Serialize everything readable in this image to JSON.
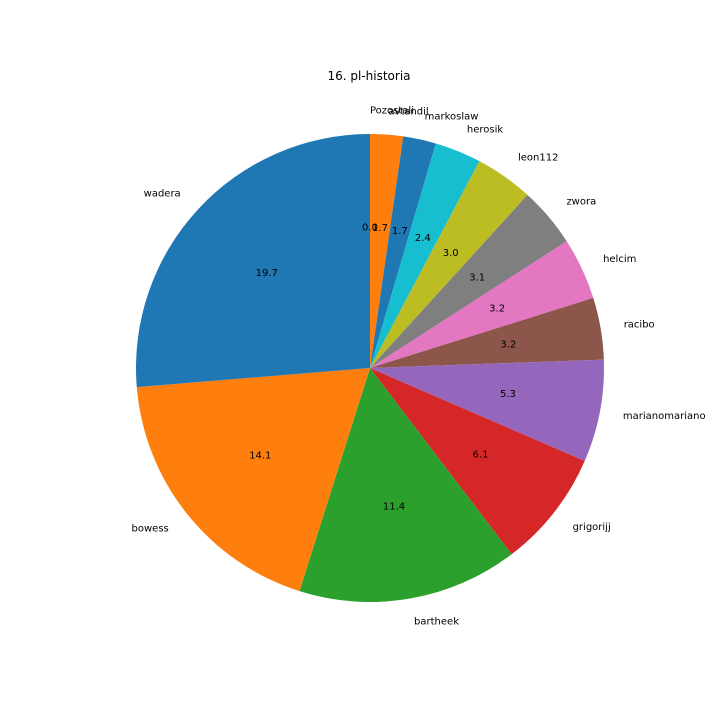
{
  "chart_data": {
    "type": "pie",
    "title": "16. pl-historia",
    "start_angle_deg": 90,
    "direction": "clockwise",
    "value_format": "percent, 1 decimal",
    "labels": [
      "Pozostali",
      "avtandil",
      "markoslaw",
      "herosik",
      "leon112",
      "zwora",
      "helcim",
      "racibo",
      "marianomariano",
      "grigorijj",
      "bartheek",
      "bowess",
      "wadera"
    ],
    "pct_labels": [
      "0.0",
      "1.7",
      "1.7",
      "2.4",
      "3.0",
      "3.1",
      "3.2",
      "3.2",
      "5.3",
      "6.1",
      "11.4",
      "14.1",
      "19.7"
    ],
    "values": [
      0.0,
      1.7,
      1.7,
      2.4,
      3.0,
      3.1,
      3.2,
      3.2,
      5.3,
      6.1,
      11.4,
      14.1,
      19.7
    ],
    "colors": [
      "#ff7f0e",
      "#ff7f0e",
      "#1f77b4",
      "#17becf",
      "#bcbd22",
      "#7f7f7f",
      "#e377c2",
      "#8c564b",
      "#9467bd",
      "#d62728",
      "#2ca02c",
      "#ff7f0e",
      "#1f77b4"
    ]
  }
}
